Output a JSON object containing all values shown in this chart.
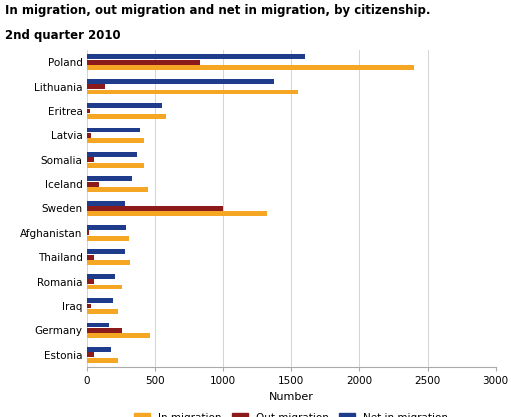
{
  "title": "In migration, out migration and net in migration, by citizenship.",
  "subtitle": "2nd quarter 2010",
  "xlabel": "Number",
  "categories": [
    "Poland",
    "Lithuania",
    "Eritrea",
    "Latvia",
    "Somalia",
    "Iceland",
    "Sweden",
    "Afghanistan",
    "Thailand",
    "Romania",
    "Iraq",
    "Germany",
    "Estonia"
  ],
  "in_migration": [
    2400,
    1550,
    580,
    420,
    420,
    450,
    1320,
    310,
    320,
    260,
    230,
    460,
    230
  ],
  "out_migration": [
    830,
    130,
    20,
    30,
    55,
    90,
    1000,
    15,
    50,
    50,
    30,
    260,
    50
  ],
  "net_migration": [
    1600,
    1370,
    555,
    390,
    370,
    330,
    280,
    290,
    280,
    210,
    190,
    165,
    175
  ],
  "color_in": "#F5A623",
  "color_out": "#8B1A1A",
  "color_net": "#1F3B8C",
  "background": "#FFFFFF",
  "grid_color": "#CCCCCC",
  "xlim": [
    0,
    3000
  ],
  "xticks": [
    0,
    500,
    1000,
    1500,
    2000,
    2500,
    3000
  ]
}
